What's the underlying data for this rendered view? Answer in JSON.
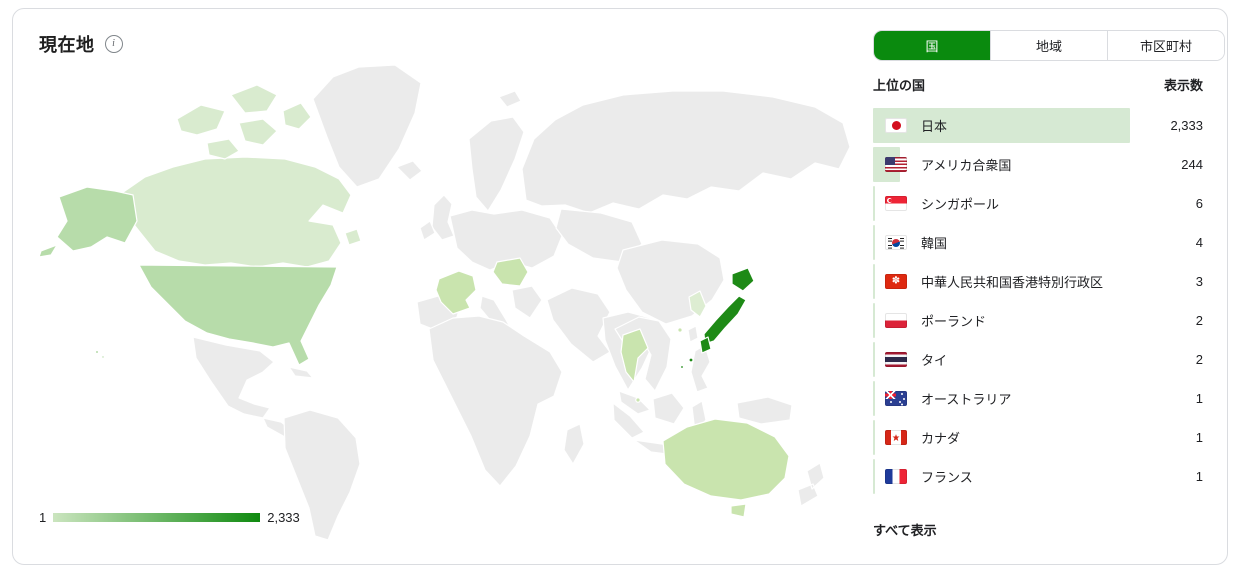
{
  "title": "現在地",
  "info_tooltip": "i",
  "tabs": [
    {
      "label": "国",
      "selected": true
    },
    {
      "label": "地域",
      "selected": false
    },
    {
      "label": "市区町村",
      "selected": false
    }
  ],
  "list": {
    "header_left": "上位の国",
    "header_right": "表示数",
    "rows": [
      {
        "flag": "jp",
        "label": "日本",
        "value": "2,333",
        "value_num": 2333
      },
      {
        "flag": "us",
        "label": "アメリカ合衆国",
        "value": "244",
        "value_num": 244
      },
      {
        "flag": "sg",
        "label": "シンガポール",
        "value": "6",
        "value_num": 6
      },
      {
        "flag": "kr",
        "label": "韓国",
        "value": "4",
        "value_num": 4
      },
      {
        "flag": "hk",
        "label": "中華人民共和国香港特別行政区",
        "value": "3",
        "value_num": 3
      },
      {
        "flag": "pl",
        "label": "ポーランド",
        "value": "2",
        "value_num": 2
      },
      {
        "flag": "th",
        "label": "タイ",
        "value": "2",
        "value_num": 2
      },
      {
        "flag": "au",
        "label": "オーストラリア",
        "value": "1",
        "value_num": 1
      },
      {
        "flag": "ca",
        "label": "カナダ",
        "value": "1",
        "value_num": 1
      },
      {
        "flag": "fr",
        "label": "フランス",
        "value": "1",
        "value_num": 1
      }
    ],
    "show_all": "すべて表示"
  },
  "legend": {
    "min": "1",
    "max": "2,333"
  },
  "colors": {
    "accent_green": "#0a8a0e",
    "map_japan": "#1e8a16",
    "map_usa": "#b7dcaa",
    "map_canada": "#d9ebcf",
    "map_light_country": "#c9e4ae",
    "map_korea": "#ddedd2",
    "map_base": "#ebebeb",
    "row_highlight_bar": "#d6e9d3",
    "card_border": "#dadce0",
    "text": "#202124",
    "legend_gradient": [
      "#cbe5bf",
      "#0f8a0f"
    ]
  },
  "chart_data": {
    "type": "heatmap",
    "subtype": "world-choropleth",
    "title": "現在地",
    "categories": [
      "日本",
      "アメリカ合衆国",
      "シンガポール",
      "韓国",
      "中華人民共和国香港特別行政区",
      "ポーランド",
      "タイ",
      "オーストラリア",
      "カナダ",
      "フランス"
    ],
    "values": [
      2333,
      244,
      6,
      4,
      3,
      2,
      2,
      1,
      1,
      1
    ],
    "legend": {
      "min": 1,
      "max": 2333,
      "min_label": "1",
      "max_label": "2,333",
      "position": "bottom-left"
    }
  }
}
